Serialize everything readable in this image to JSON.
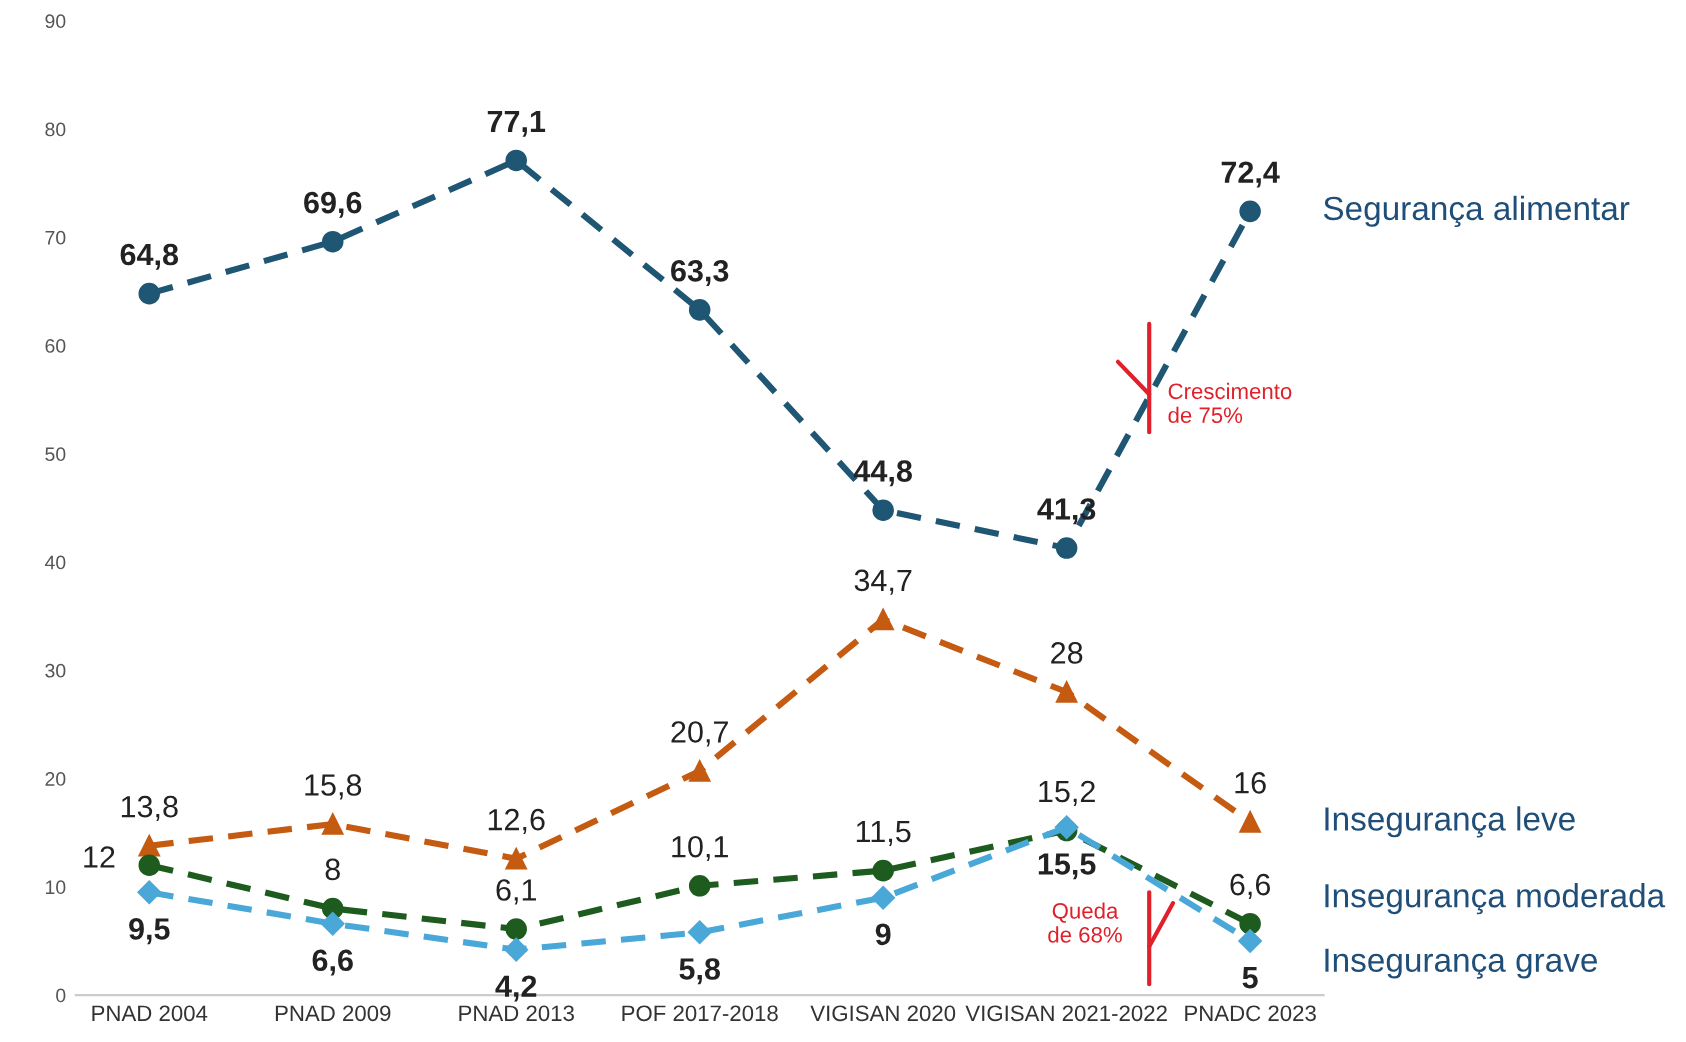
{
  "chart_data": {
    "type": "line",
    "categories": [
      "PNAD 2004",
      "PNAD 2009",
      "PNAD 2013",
      "POF 2017-2018",
      "VIGISAN 2020",
      "VIGISAN 2021-2022",
      "PNADC 2023"
    ],
    "series": [
      {
        "name": "Segurança alimentar",
        "color": "#1f5673",
        "marker": "circle",
        "values": [
          64.8,
          69.6,
          77.1,
          63.3,
          44.8,
          41.3,
          72.4
        ],
        "value_labels": [
          "64,8",
          "69,6",
          "77,1",
          "63,3",
          "44,8",
          "41,3",
          "72,4"
        ]
      },
      {
        "name": "Insegurança leve",
        "color": "#c55a11",
        "marker": "triangle",
        "values": [
          13.8,
          15.8,
          12.6,
          20.7,
          34.7,
          28,
          16
        ],
        "value_labels": [
          "13,8",
          "15,8",
          "12,6",
          "20,7",
          "34,7",
          "28",
          "16"
        ]
      },
      {
        "name": "Insegurança moderada",
        "color": "#1e5b1e",
        "marker": "circle",
        "values": [
          12,
          8,
          6.1,
          10.1,
          11.5,
          15.2,
          6.6
        ],
        "value_labels": [
          "12",
          "8",
          "6,1",
          "10,1",
          "11,5",
          "15,2",
          "6,6"
        ]
      },
      {
        "name": "Insegurança grave",
        "color": "#4aa8d8",
        "marker": "diamond",
        "values": [
          9.5,
          6.6,
          4.2,
          5.8,
          9,
          15.5,
          5
        ],
        "value_labels": [
          "9,5",
          "6,6",
          "4,2",
          "5,8",
          "9",
          "15,5",
          "5"
        ]
      }
    ],
    "ylim": [
      0,
      90
    ],
    "yticks": [
      0,
      10,
      20,
      30,
      40,
      50,
      60,
      70,
      80,
      90
    ],
    "line_style": "dashed",
    "grid": false,
    "legend": false,
    "annotations": [
      "Crescimento\nde 75%",
      "Queda\nde 68%"
    ]
  }
}
